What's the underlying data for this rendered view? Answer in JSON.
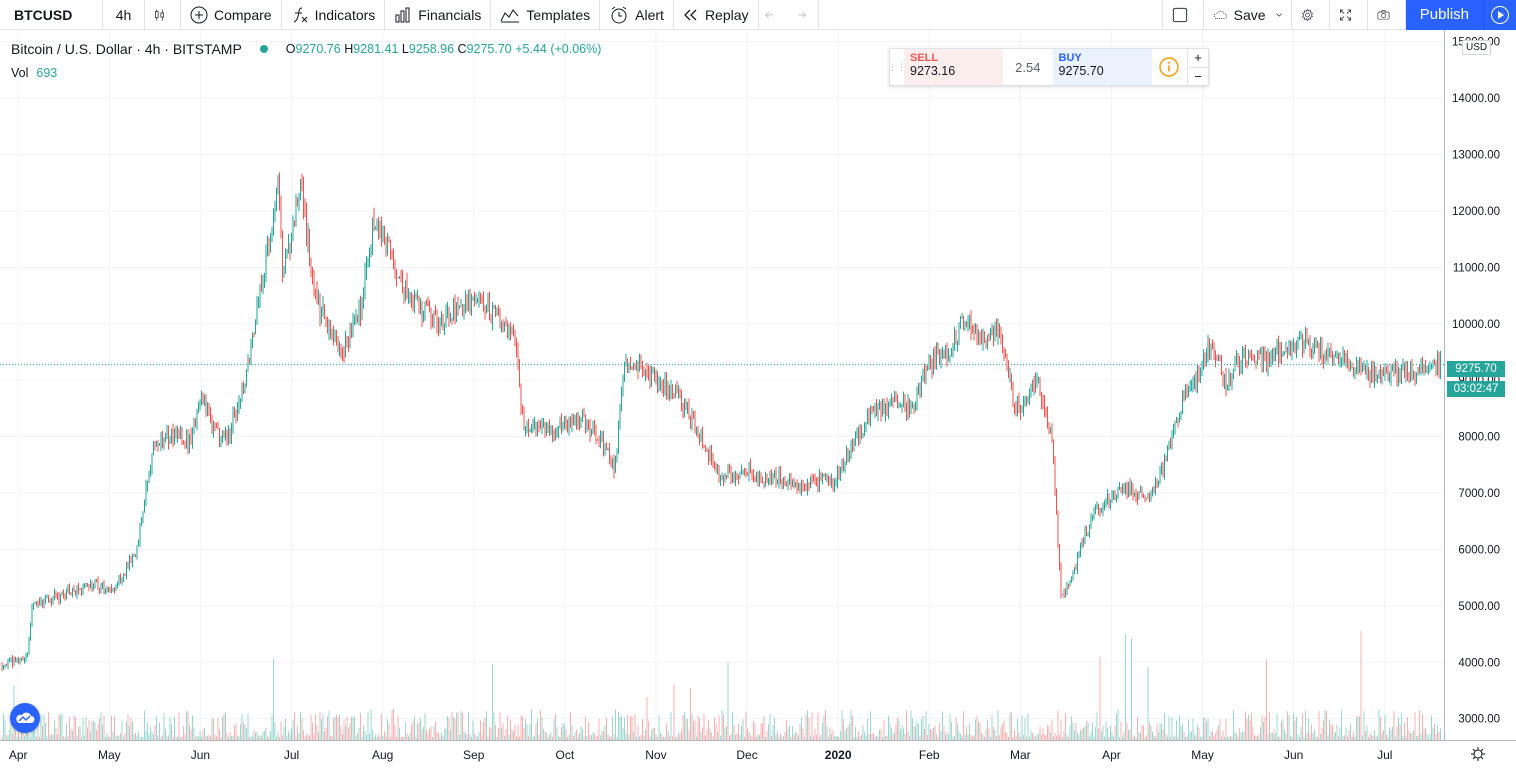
{
  "toolbar": {
    "symbol": "BTCUSD",
    "interval": "4h",
    "compare": "Compare",
    "indicators": "Indicators",
    "financials": "Financials",
    "templates": "Templates",
    "alert": "Alert",
    "replay": "Replay",
    "save": "Save",
    "publish": "Publish"
  },
  "legend": {
    "title": "Bitcoin / U.S. Dollar · 4h · BITSTAMP",
    "o_label": "O",
    "o": "9270.76",
    "h_label": "H",
    "h": "9281.41",
    "l_label": "L",
    "l": "9258.96",
    "c_label": "C",
    "c": "9275.70",
    "change": "+5.44 (+0.06%)",
    "vol_label": "Vol",
    "vol_value": "693"
  },
  "trade": {
    "sell_label": "SELL",
    "sell_price": "9273.16",
    "spread": "2.54",
    "buy_label": "BUY",
    "buy_price": "9275.70",
    "plus": "+",
    "minus": "−"
  },
  "axis": {
    "currency": "USD",
    "last_price": "9275.70",
    "countdown": "03:02:47"
  },
  "colors": {
    "up": "#26a69a",
    "down": "#ef5350",
    "accent": "#2962ff"
  },
  "chart_data": {
    "type": "candlestick",
    "title": "Bitcoin / U.S. Dollar · 4h · BITSTAMP",
    "y_ticks": [
      "3000.00",
      "4000.00",
      "5000.00",
      "6000.00",
      "7000.00",
      "8000.00",
      "9000.00",
      "10000.00",
      "11000.00",
      "12000.00",
      "13000.00",
      "14000.00",
      "15000.00"
    ],
    "ylim": [
      2800,
      15100
    ],
    "x_ticks": [
      "Apr",
      "May",
      "Jun",
      "Jul",
      "Aug",
      "Sep",
      "Oct",
      "Nov",
      "Dec",
      "2020",
      "Feb",
      "Mar",
      "Apr",
      "May",
      "Jun",
      "Jul"
    ],
    "x_tick_months": [
      0,
      1,
      2,
      3,
      4,
      5,
      6,
      7,
      8,
      9,
      10,
      11,
      12,
      13,
      14,
      15
    ],
    "xlim_months": [
      -0.2,
      15.65
    ],
    "trend": [
      [
        -0.2,
        3950
      ],
      [
        0.1,
        4100
      ],
      [
        0.15,
        5000
      ],
      [
        0.5,
        5200
      ],
      [
        0.8,
        5400
      ],
      [
        1.0,
        5300
      ],
      [
        1.15,
        5500
      ],
      [
        1.3,
        6000
      ],
      [
        1.4,
        7000
      ],
      [
        1.5,
        7900
      ],
      [
        1.7,
        8000
      ],
      [
        1.9,
        7900
      ],
      [
        2.0,
        8800
      ],
      [
        2.15,
        8100
      ],
      [
        2.3,
        8000
      ],
      [
        2.5,
        9000
      ],
      [
        2.65,
        10500
      ],
      [
        2.85,
        12500
      ],
      [
        2.9,
        11000
      ],
      [
        3.0,
        11500
      ],
      [
        3.1,
        12500
      ],
      [
        3.25,
        10500
      ],
      [
        3.45,
        9800
      ],
      [
        3.55,
        9500
      ],
      [
        3.75,
        10200
      ],
      [
        3.9,
        11800
      ],
      [
        4.05,
        11500
      ],
      [
        4.2,
        10700
      ],
      [
        4.4,
        10300
      ],
      [
        4.6,
        10000
      ],
      [
        4.8,
        10300
      ],
      [
        5.0,
        10400
      ],
      [
        5.2,
        10200
      ],
      [
        5.35,
        10000
      ],
      [
        5.45,
        9700
      ],
      [
        5.55,
        8200
      ],
      [
        5.8,
        8100
      ],
      [
        6.0,
        8200
      ],
      [
        6.2,
        8300
      ],
      [
        6.45,
        7800
      ],
      [
        6.55,
        7400
      ],
      [
        6.65,
        9300
      ],
      [
        6.85,
        9200
      ],
      [
        7.0,
        9000
      ],
      [
        7.25,
        8700
      ],
      [
        7.5,
        8000
      ],
      [
        7.7,
        7300
      ],
      [
        7.9,
        7300
      ],
      [
        8.0,
        7400
      ],
      [
        8.2,
        7200
      ],
      [
        8.4,
        7300
      ],
      [
        8.55,
        7100
      ],
      [
        8.75,
        7200
      ],
      [
        8.95,
        7200
      ],
      [
        9.15,
        7800
      ],
      [
        9.35,
        8400
      ],
      [
        9.6,
        8600
      ],
      [
        9.8,
        8500
      ],
      [
        10.0,
        9300
      ],
      [
        10.2,
        9500
      ],
      [
        10.4,
        10100
      ],
      [
        10.55,
        9700
      ],
      [
        10.75,
        9900
      ],
      [
        10.95,
        8500
      ],
      [
        11.1,
        8700
      ],
      [
        11.2,
        9000
      ],
      [
        11.35,
        7900
      ],
      [
        11.45,
        5100
      ],
      [
        11.55,
        5400
      ],
      [
        11.7,
        6200
      ],
      [
        11.85,
        6700
      ],
      [
        12.0,
        6900
      ],
      [
        12.2,
        7100
      ],
      [
        12.4,
        6900
      ],
      [
        12.6,
        7600
      ],
      [
        12.8,
        8800
      ],
      [
        12.95,
        9100
      ],
      [
        13.1,
        9700
      ],
      [
        13.25,
        8900
      ],
      [
        13.45,
        9500
      ],
      [
        13.7,
        9300
      ],
      [
        13.9,
        9600
      ],
      [
        14.1,
        9700
      ],
      [
        14.3,
        9500
      ],
      [
        14.6,
        9300
      ],
      [
        14.9,
        9100
      ],
      [
        15.2,
        9150
      ],
      [
        15.45,
        9200
      ],
      [
        15.65,
        9275
      ]
    ],
    "last_price": 9275.7
  }
}
